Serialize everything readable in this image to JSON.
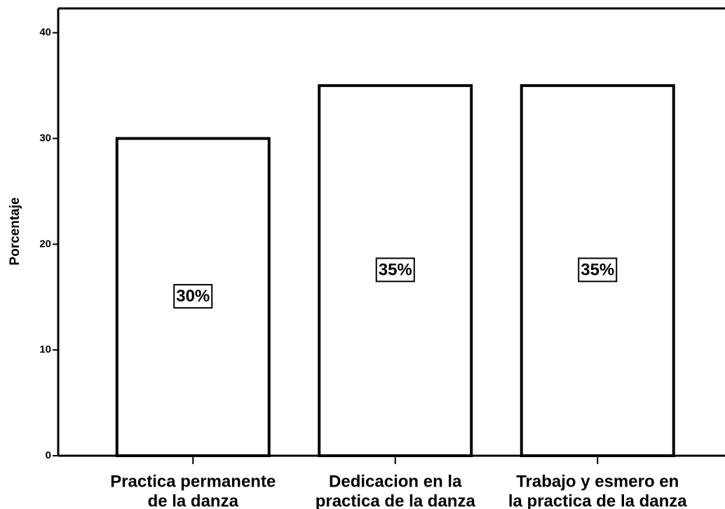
{
  "chart_data": {
    "type": "bar",
    "y_axis_label": "Porcentaje",
    "categories": [
      [
        "Practica permanente",
        "de la danza"
      ],
      [
        "Dedicacion en la",
        "practica de la danza"
      ],
      [
        "Trabajo y esmero en",
        "la practica de la danza"
      ]
    ],
    "values": [
      30,
      35,
      35
    ],
    "value_labels": [
      "30%",
      "35%",
      "35%"
    ],
    "color": "#ffffff",
    "ylim": [
      0,
      42.3
    ],
    "yticks": [
      0,
      10,
      20,
      30,
      40
    ],
    "grid": false
  }
}
